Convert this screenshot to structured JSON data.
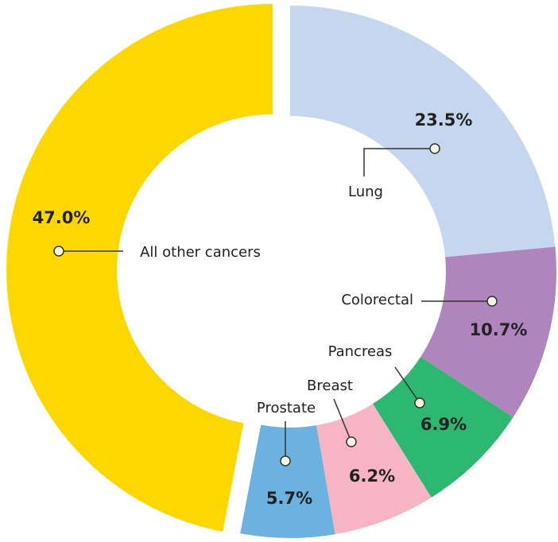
{
  "chart_data": {
    "type": "pie",
    "donut": true,
    "categories": [
      "Lung",
      "Colorectal",
      "Pancreas",
      "Breast",
      "Prostate",
      "All other cancers"
    ],
    "values": [
      23.5,
      10.7,
      6.9,
      6.2,
      5.7,
      47.0
    ],
    "value_labels": [
      "23.5%",
      "10.7%",
      "6.9%",
      "6.2%",
      "5.7%",
      "47.0%"
    ],
    "colors": [
      "#c5d7ef",
      "#ae86bd",
      "#2db872",
      "#f7b5c4",
      "#6cb2e0",
      "#fcd800"
    ]
  }
}
